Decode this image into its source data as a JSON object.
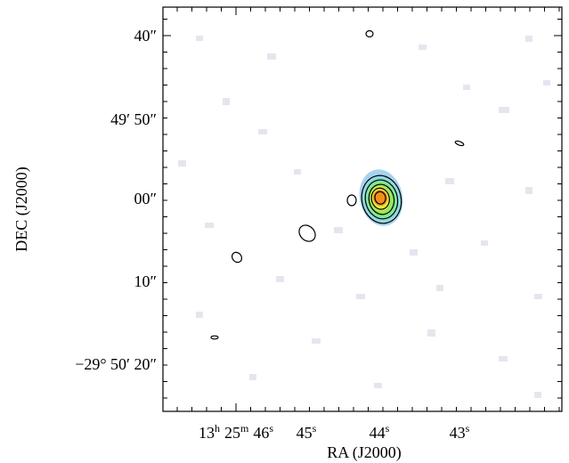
{
  "figure": {
    "x_label": "RA (J2000)",
    "y_label": "DEC (J2000)",
    "x_ticks": [
      [
        [
          "13",
          "h"
        ],
        [
          "25",
          "m"
        ],
        [
          "46",
          "s"
        ]
      ],
      [
        [
          "45",
          "s"
        ]
      ],
      [
        [
          "44",
          "s"
        ]
      ],
      [
        [
          "43",
          "s"
        ]
      ]
    ],
    "y_ticks": [
      "40″",
      "49′ 50″",
      "00″",
      "10″",
      "−29° 50′ 20″"
    ]
  }
}
